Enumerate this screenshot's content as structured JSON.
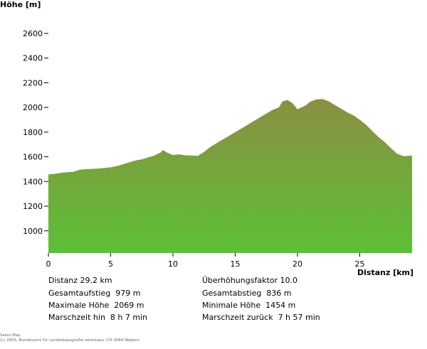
{
  "chart_data": {
    "type": "area",
    "ylabel": "Höhe [m]",
    "xlabel": "Distanz [km]",
    "yticks": [
      1000,
      1200,
      1400,
      1600,
      1800,
      2000,
      2200,
      2400,
      2600
    ],
    "xticks": [
      0,
      5,
      10,
      15,
      20,
      25
    ],
    "xlim": [
      0,
      29.2
    ],
    "ylim": [
      820,
      2600
    ],
    "colors": {
      "top": "#8a8f42",
      "bottom": "#5cc036"
    },
    "x": [
      0,
      0.5,
      1,
      1.5,
      2,
      2.5,
      3,
      3.5,
      4,
      4.5,
      5,
      5.5,
      6,
      6.5,
      7,
      7.5,
      8,
      8.5,
      9,
      9.2,
      9.5,
      10,
      10.5,
      11,
      11.5,
      12,
      12.5,
      13,
      13.5,
      14,
      14.5,
      15,
      15.5,
      16,
      16.5,
      17,
      17.5,
      18,
      18.5,
      18.8,
      19.2,
      19.6,
      20,
      20.3,
      20.7,
      21,
      21.5,
      22,
      22.5,
      23,
      23.5,
      24,
      24.5,
      25,
      25.5,
      26,
      26.5,
      27,
      27.5,
      28,
      28.5,
      29.2
    ],
    "y": [
      1458,
      1462,
      1470,
      1475,
      1478,
      1495,
      1500,
      1502,
      1505,
      1510,
      1515,
      1525,
      1540,
      1555,
      1570,
      1580,
      1595,
      1610,
      1635,
      1655,
      1635,
      1615,
      1620,
      1612,
      1610,
      1608,
      1640,
      1680,
      1710,
      1740,
      1770,
      1800,
      1830,
      1860,
      1890,
      1920,
      1950,
      1980,
      2000,
      2050,
      2060,
      2035,
      1985,
      2000,
      2020,
      2045,
      2065,
      2069,
      2050,
      2020,
      1990,
      1960,
      1935,
      1900,
      1860,
      1810,
      1760,
      1720,
      1670,
      1625,
      1605,
      1610
    ]
  },
  "stats": {
    "distanz": "Distanz 29.2 km",
    "faktor": "Überhöhungsfaktor 10.0",
    "aufstieg": "Gesamtaufstieg  979 m",
    "abstieg": "Gesamtabstieg  836 m",
    "max": "Maximale Höhe  2069 m",
    "min": "Minimale Höhe  1454 m",
    "hin": "Marschzeit hin  8 h 7 min",
    "zurueck": "Marschzeit zurück  7 h 57 min"
  },
  "footer": {
    "line1": "Swiss Map",
    "line2": "(c) 2005, Bundesamt für Landestopografie swisstopo, CH-3084 Wabern"
  }
}
